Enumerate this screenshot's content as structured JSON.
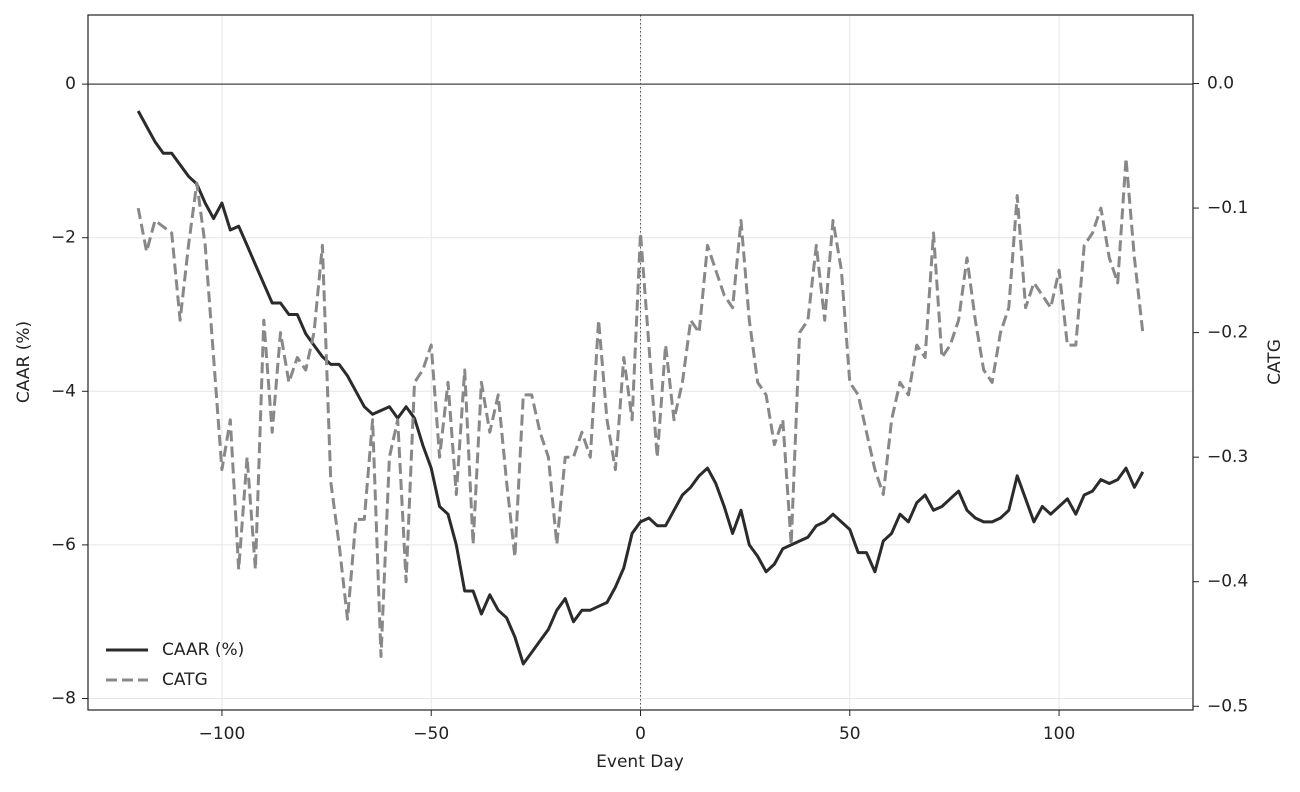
{
  "chart_data": {
    "type": "line",
    "x_label": "Event Day",
    "y_label": "CAAR (%)",
    "y2_label": "CATG",
    "x": [
      -120,
      -118,
      -116,
      -114,
      -112,
      -110,
      -108,
      -106,
      -104,
      -102,
      -100,
      -98,
      -96,
      -94,
      -92,
      -90,
      -88,
      -86,
      -84,
      -82,
      -80,
      -78,
      -76,
      -74,
      -72,
      -70,
      -68,
      -66,
      -64,
      -62,
      -60,
      -58,
      -56,
      -54,
      -52,
      -50,
      -48,
      -46,
      -44,
      -42,
      -40,
      -38,
      -36,
      -34,
      -32,
      -30,
      -28,
      -26,
      -24,
      -22,
      -20,
      -18,
      -16,
      -14,
      -12,
      -10,
      -8,
      -6,
      -4,
      -2,
      0,
      2,
      4,
      6,
      8,
      10,
      12,
      14,
      16,
      18,
      20,
      22,
      24,
      26,
      28,
      30,
      32,
      34,
      36,
      38,
      40,
      42,
      44,
      46,
      48,
      50,
      52,
      54,
      56,
      58,
      60,
      62,
      64,
      66,
      68,
      70,
      72,
      74,
      76,
      78,
      80,
      82,
      84,
      86,
      88,
      90,
      92,
      94,
      96,
      98,
      100,
      102,
      104,
      106,
      108,
      110,
      112,
      114,
      116,
      118,
      120
    ],
    "series": [
      {
        "name": "CAAR (%)",
        "color": "#2b2b2b",
        "dash": "solid",
        "axis": "y",
        "values": [
          -0.35,
          -0.55,
          -0.75,
          -0.9,
          -0.9,
          -1.05,
          -1.2,
          -1.3,
          -1.55,
          -1.75,
          -1.55,
          -1.9,
          -1.85,
          -2.1,
          -2.35,
          -2.6,
          -2.85,
          -2.85,
          -3.0,
          -3.0,
          -3.25,
          -3.4,
          -3.55,
          -3.65,
          -3.65,
          -3.8,
          -4.0,
          -4.2,
          -4.3,
          -4.25,
          -4.2,
          -4.35,
          -4.2,
          -4.35,
          -4.7,
          -5.0,
          -5.5,
          -5.6,
          -6.0,
          -6.6,
          -6.6,
          -6.9,
          -6.65,
          -6.85,
          -6.95,
          -7.2,
          -7.55,
          -7.4,
          -7.25,
          -7.1,
          -6.85,
          -6.7,
          -7.0,
          -6.85,
          -6.85,
          -6.8,
          -6.75,
          -6.55,
          -6.3,
          -5.85,
          -5.7,
          -5.65,
          -5.75,
          -5.75,
          -5.55,
          -5.35,
          -5.25,
          -5.1,
          -5.0,
          -5.2,
          -5.5,
          -5.85,
          -5.55,
          -6.0,
          -6.15,
          -6.35,
          -6.25,
          -6.05,
          -6.0,
          -5.95,
          -5.9,
          -5.75,
          -5.7,
          -5.6,
          -5.7,
          -5.8,
          -6.1,
          -6.1,
          -6.35,
          -5.95,
          -5.85,
          -5.6,
          -5.7,
          -5.45,
          -5.35,
          -5.55,
          -5.5,
          -5.4,
          -5.3,
          -5.55,
          -5.65,
          -5.7,
          -5.7,
          -5.65,
          -5.55,
          -5.1,
          -5.4,
          -5.7,
          -5.5,
          -5.6,
          -5.5,
          -5.4,
          -5.6,
          -5.35,
          -5.3,
          -5.15,
          -5.2,
          -5.15,
          -5.0,
          -5.25,
          -5.05
        ]
      },
      {
        "name": "CATG",
        "color": "#888888",
        "dash": "dashed",
        "axis": "y2",
        "values": [
          -0.1,
          -0.135,
          -0.11,
          -0.115,
          -0.12,
          -0.19,
          -0.13,
          -0.08,
          -0.13,
          -0.22,
          -0.31,
          -0.27,
          -0.39,
          -0.3,
          -0.39,
          -0.19,
          -0.28,
          -0.2,
          -0.24,
          -0.22,
          -0.23,
          -0.2,
          -0.13,
          -0.32,
          -0.37,
          -0.43,
          -0.35,
          -0.35,
          -0.27,
          -0.46,
          -0.3,
          -0.27,
          -0.4,
          -0.24,
          -0.23,
          -0.21,
          -0.3,
          -0.24,
          -0.33,
          -0.23,
          -0.37,
          -0.24,
          -0.28,
          -0.25,
          -0.32,
          -0.38,
          -0.25,
          -0.25,
          -0.28,
          -0.3,
          -0.37,
          -0.3,
          -0.3,
          -0.28,
          -0.3,
          -0.19,
          -0.27,
          -0.31,
          -0.22,
          -0.27,
          -0.12,
          -0.21,
          -0.3,
          -0.21,
          -0.27,
          -0.24,
          -0.19,
          -0.2,
          -0.13,
          -0.15,
          -0.17,
          -0.18,
          -0.11,
          -0.19,
          -0.24,
          -0.25,
          -0.29,
          -0.27,
          -0.37,
          -0.2,
          -0.19,
          -0.13,
          -0.19,
          -0.11,
          -0.15,
          -0.24,
          -0.25,
          -0.28,
          -0.31,
          -0.33,
          -0.27,
          -0.24,
          -0.25,
          -0.21,
          -0.22,
          -0.12,
          -0.22,
          -0.21,
          -0.19,
          -0.14,
          -0.19,
          -0.23,
          -0.24,
          -0.2,
          -0.18,
          -0.09,
          -0.18,
          -0.16,
          -0.17,
          -0.18,
          -0.15,
          -0.21,
          -0.21,
          -0.13,
          -0.12,
          -0.1,
          -0.14,
          -0.16,
          -0.06,
          -0.14,
          -0.2
        ]
      }
    ],
    "xlim": [
      -132,
      132
    ],
    "ylim": [
      -8.15,
      0.9
    ],
    "y2lim": [
      -0.503,
      0.055
    ],
    "xticks": [
      {
        "value": -100,
        "label": "−100"
      },
      {
        "value": -50,
        "label": "−50"
      },
      0,
      50,
      100
    ],
    "yticks": [
      {
        "value": -8,
        "label": "−8"
      },
      {
        "value": -6,
        "label": "−6"
      },
      {
        "value": -4,
        "label": "−4"
      },
      {
        "value": -2,
        "label": "−2"
      },
      0
    ],
    "y2ticks": [
      {
        "value": -0.5,
        "label": "−0.5"
      },
      {
        "value": -0.4,
        "label": "−0.4"
      },
      {
        "value": -0.3,
        "label": "−0.3"
      },
      {
        "value": -0.2,
        "label": "−0.2"
      },
      {
        "value": -0.1,
        "label": "−0.1"
      },
      {
        "value": 0,
        "label": "0.0"
      }
    ],
    "hline": 0,
    "vline": 0,
    "grid": true,
    "legend": "lower left"
  }
}
